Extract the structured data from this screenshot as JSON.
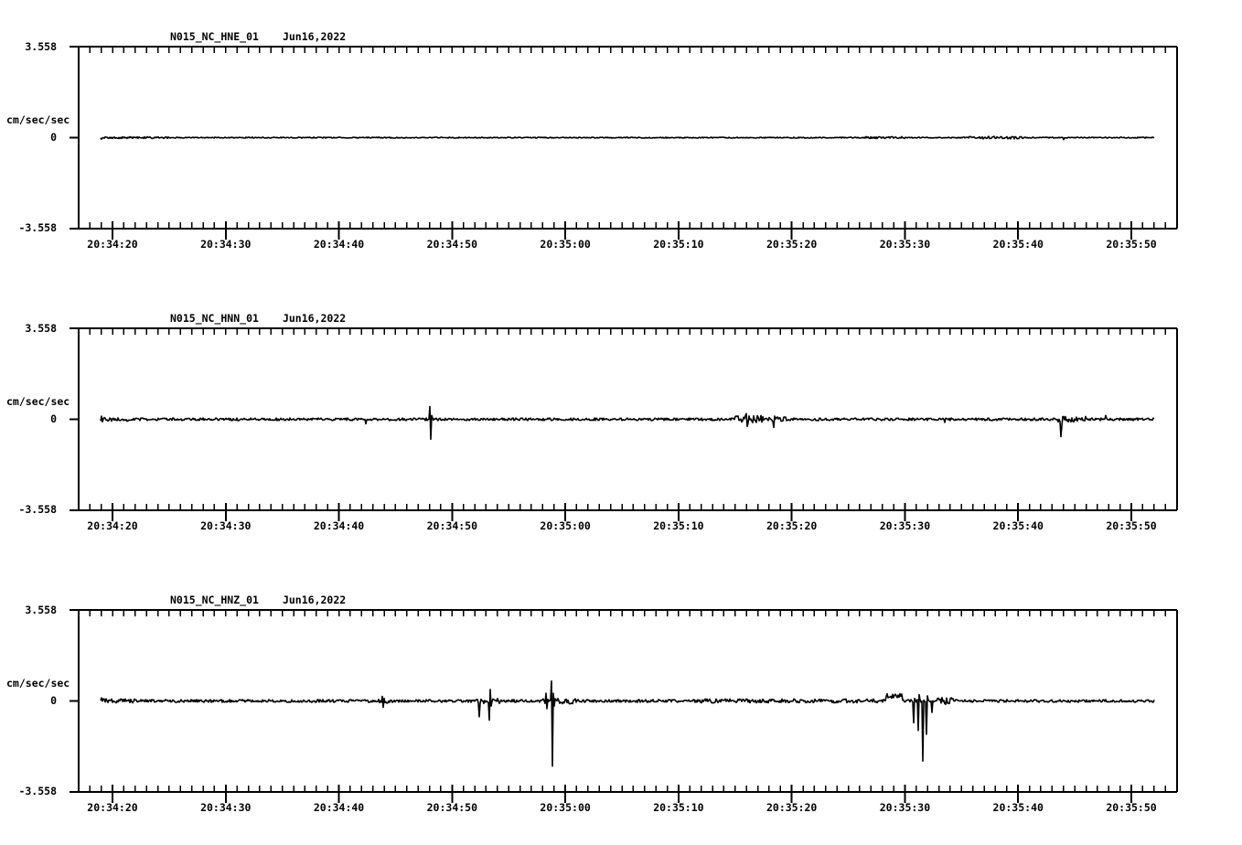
{
  "colors": {
    "background": "#ffffff",
    "ink": "#000000"
  },
  "chart_data": {
    "type": "line",
    "kind": "three-component seismogram waveform display",
    "x_axis": {
      "tick_labels": [
        "20:34:20",
        "20:34:30",
        "20:34:40",
        "20:34:50",
        "20:35:00",
        "20:35:10",
        "20:35:20",
        "20:35:30",
        "20:35:40",
        "20:35:50"
      ],
      "minor_tick_interval_s": 1,
      "major_tick_interval_s": 10
    },
    "y_axis": {
      "unit_label": "cm/sec/sec",
      "tick_labels": [
        "3.558",
        "0",
        "-3.558"
      ],
      "ylim": [
        -3.558,
        3.558
      ]
    },
    "trace": {
      "start_s": -1.05,
      "end_s": 92.0,
      "units": "cm/sec/sec"
    },
    "panels": [
      {
        "title": "N015_NC_HNE_01",
        "date": "Jun16,2022",
        "seed": 11,
        "base_noise": 0.02,
        "noise_bursts": [
          {
            "start": -1.1,
            "end": 5.0,
            "amp": 0.035
          },
          {
            "start": 66.5,
            "end": 70.0,
            "amp": 0.04
          },
          {
            "start": 75.5,
            "end": 80.5,
            "amp": 0.05
          }
        ],
        "spikes": [
          {
            "t": -1.0,
            "peaks": [
              -0.06
            ]
          },
          {
            "t": 84.0,
            "peaks": [
              -0.08
            ]
          }
        ]
      },
      {
        "title": "N015_NC_HNN_01",
        "date": "Jun16,2022",
        "seed": 22,
        "base_noise": 0.05,
        "noise_bursts": [
          {
            "start": -1.1,
            "end": 2.0,
            "amp": 0.08
          },
          {
            "start": 55.0,
            "end": 57.6,
            "amp": 0.16
          },
          {
            "start": 58.0,
            "end": 59.5,
            "amp": 0.1
          },
          {
            "start": 83.5,
            "end": 86.0,
            "amp": 0.11
          }
        ],
        "spikes": [
          {
            "t": -1.0,
            "peaks": [
              0.12,
              -0.1
            ]
          },
          {
            "t": 22.4,
            "peaks": [
              -0.18
            ]
          },
          {
            "t": 28.0,
            "peaks": [
              0.5,
              -0.78,
              0.15
            ]
          },
          {
            "t": 56.0,
            "peaks": [
              0.22,
              -0.28
            ]
          },
          {
            "t": 58.4,
            "peaks": [
              -0.32,
              0.12
            ]
          },
          {
            "t": 73.5,
            "peaks": [
              -0.12
            ]
          },
          {
            "t": 83.8,
            "peaks": [
              -0.68,
              -0.25,
              0.1
            ]
          },
          {
            "t": 87.7,
            "peaks": [
              0.15
            ]
          }
        ]
      },
      {
        "title": "N015_NC_HNZ_01",
        "date": "Jun16,2022",
        "seed": 33,
        "base_noise": 0.055,
        "noise_bursts": [
          {
            "start": -1.1,
            "end": 2.0,
            "amp": 0.09
          },
          {
            "start": 23.4,
            "end": 24.6,
            "amp": 0.09
          },
          {
            "start": 31.8,
            "end": 34.2,
            "amp": 0.1
          },
          {
            "start": 38.0,
            "end": 39.2,
            "amp": 0.1
          },
          {
            "start": 39.3,
            "end": 41.0,
            "amp": 0.12
          },
          {
            "start": 52.0,
            "end": 68.2,
            "amp": 0.08
          },
          {
            "start": 68.3,
            "end": 69.8,
            "amp": 0.1,
            "offset": 0.2
          },
          {
            "start": 72.6,
            "end": 74.5,
            "amp": 0.14
          }
        ],
        "spikes": [
          {
            "t": -1.0,
            "peaks": [
              0.12
            ]
          },
          {
            "t": 23.8,
            "peaks": [
              0.18,
              -0.25,
              0.1
            ]
          },
          {
            "t": 32.4,
            "peaks": [
              -0.62
            ]
          },
          {
            "t": 33.3,
            "peaks": [
              -0.75,
              0.45,
              -0.2
            ]
          },
          {
            "t": 38.3,
            "peaks": [
              0.3,
              -0.3
            ]
          },
          {
            "t": 38.8,
            "peaks": [
              0.78,
              -2.55,
              0.3,
              -0.2
            ]
          },
          {
            "t": 70.8,
            "peaks": [
              -0.85,
              0.1
            ]
          },
          {
            "t": 71.2,
            "peaks": [
              -1.15,
              0.25
            ]
          },
          {
            "t": 71.6,
            "peaks": [
              -2.35
            ]
          },
          {
            "t": 71.9,
            "peaks": [
              -1.3,
              0.2
            ]
          },
          {
            "t": 72.4,
            "peaks": [
              -0.45
            ]
          }
        ]
      }
    ]
  }
}
